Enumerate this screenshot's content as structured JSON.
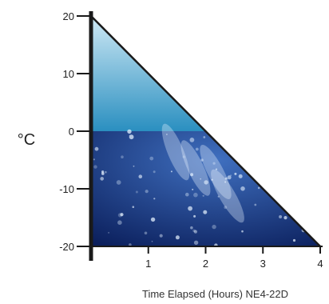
{
  "chart_data": {
    "type": "area",
    "title": "",
    "xlabel": "Time Elapsed (Hours) NE4-22D",
    "ylabel": "°C",
    "xlim": [
      0,
      4
    ],
    "ylim": [
      -20,
      20
    ],
    "x_ticks": [
      1,
      2,
      3,
      4
    ],
    "y_ticks": [
      20,
      10,
      0,
      -10,
      -20
    ],
    "series": [
      {
        "x": [
          0,
          4
        ],
        "y": [
          20,
          -20
        ]
      }
    ],
    "grid": false,
    "legend": "none",
    "colors": {
      "axis": "#1a1a1a",
      "upper_fill_light": "#cfe9f5",
      "upper_fill_dark": "#2a8fc0",
      "lower_fill_light": "#3f6fbf",
      "lower_fill_dark": "#0b1f5c",
      "ice_highlight": "#e6f2ff"
    }
  }
}
